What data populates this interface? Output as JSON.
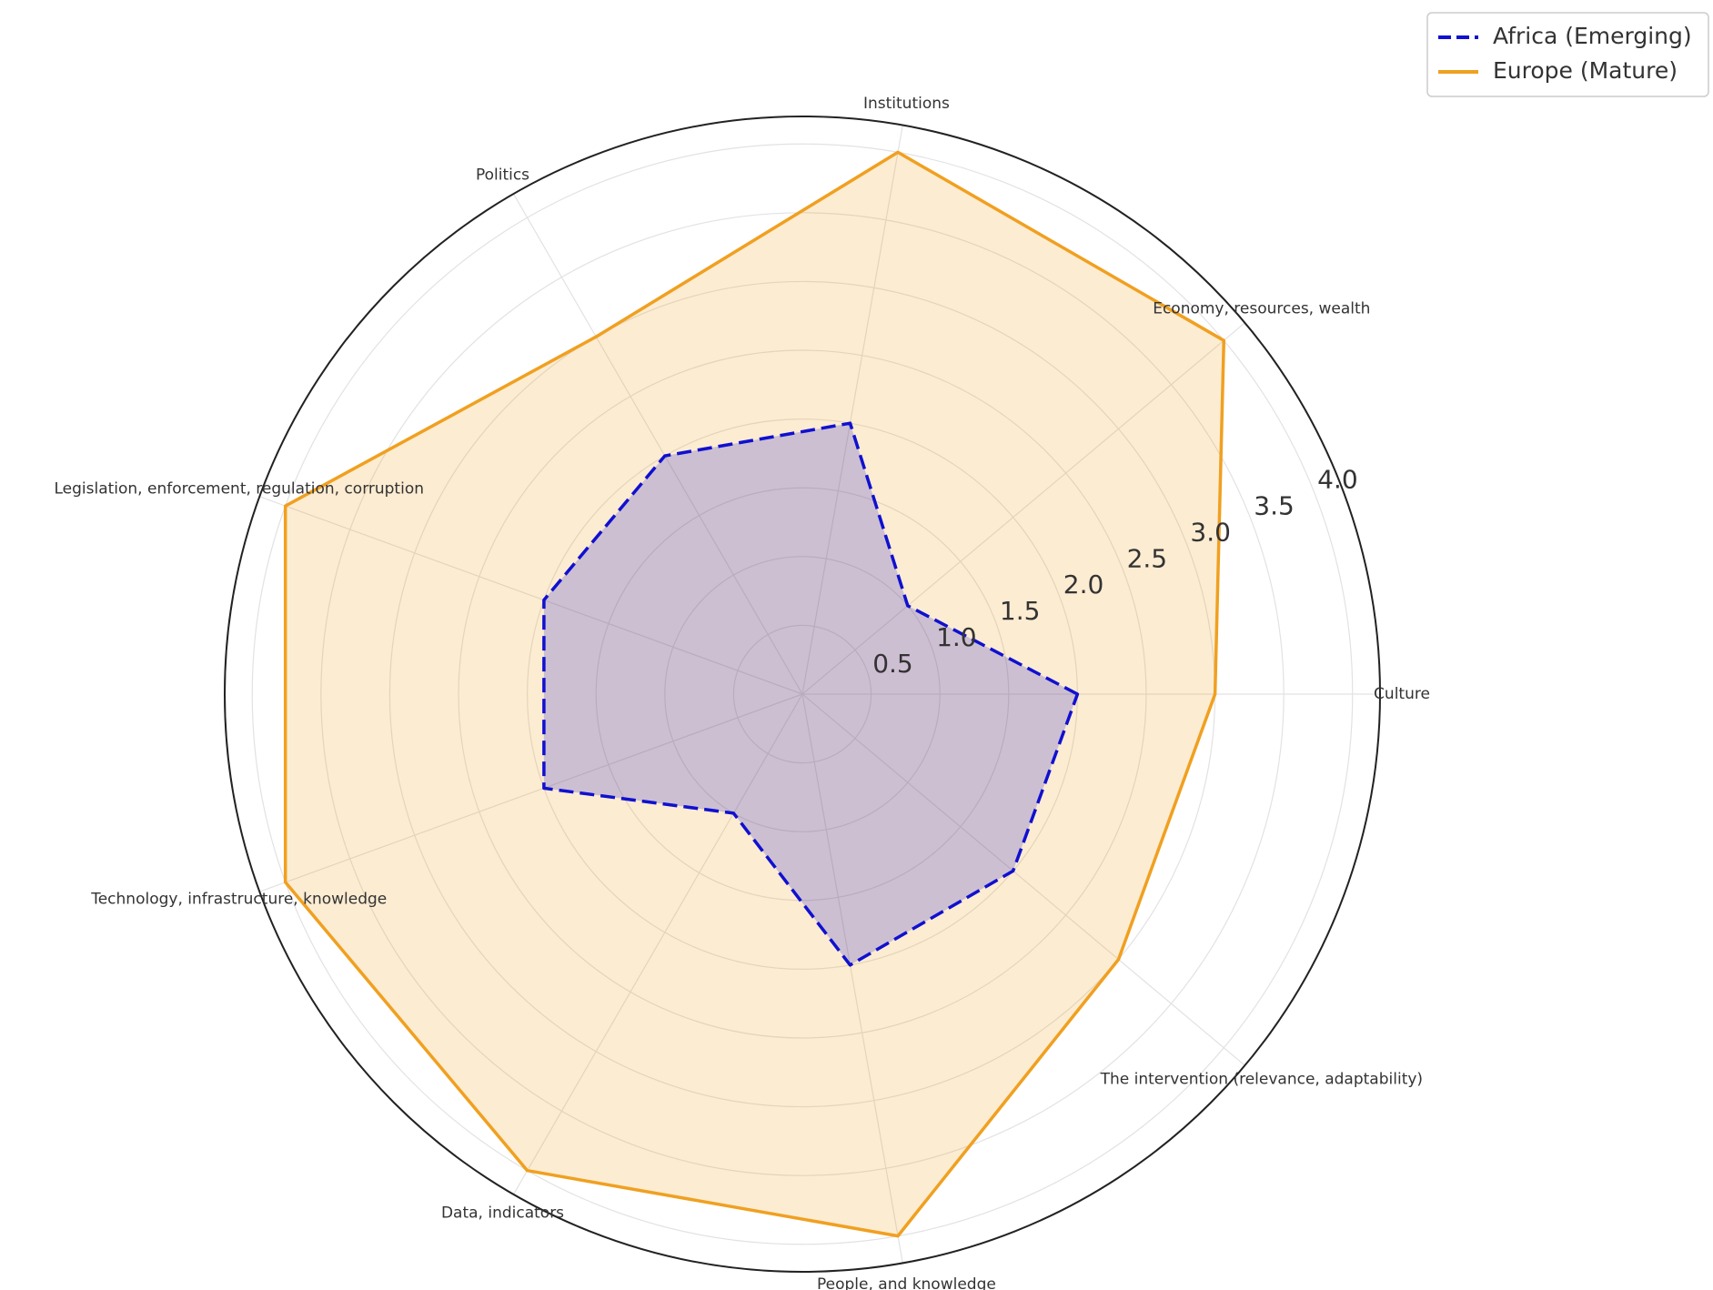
{
  "chart_data": {
    "type": "radar",
    "categories": [
      "Culture",
      "Economy, resources, wealth",
      "Institutions",
      "Politics",
      "Legislation, enforcement, regulation, corruption",
      "Technology, infrastructure, knowledge",
      "Data, indicators",
      "People, and knowledge",
      "The intervention (relevance, adaptability)"
    ],
    "series": [
      {
        "name": "Africa (Emerging)",
        "color": "#1010d0",
        "dashed": true,
        "values": [
          2,
          1,
          2,
          2,
          2,
          2,
          1,
          2,
          2
        ]
      },
      {
        "name": "Europe (Mature)",
        "color": "#f0a020",
        "dashed": false,
        "values": [
          3,
          4,
          4,
          3,
          4,
          4,
          4,
          4,
          3
        ]
      }
    ],
    "rlim": [
      0,
      4.2
    ],
    "rticks": [
      0.5,
      {
        "value": 1.0,
        "label": "1.0"
      },
      1.5,
      {
        "value": 2.0,
        "label": "2.0"
      },
      2.5,
      {
        "value": 3.0,
        "label": "3.0"
      },
      3.5,
      {
        "value": 4.0,
        "label": "4.0"
      }
    ],
    "grid": true,
    "legend": "upper right"
  }
}
